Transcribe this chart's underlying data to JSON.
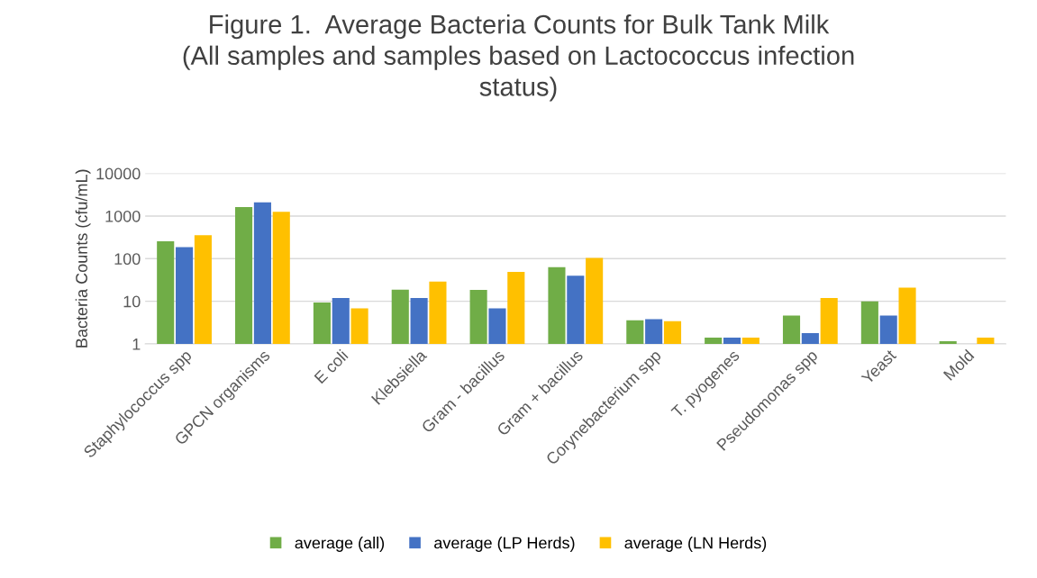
{
  "chart_data": {
    "type": "bar",
    "title": "Figure 1.  Average Bacteria Counts for Bulk Tank Milk\n(All samples and samples based on Lactococcus infection\nstatus)",
    "ylabel": "Bacteria Counts (cfu/mL)",
    "categories": [
      "Staphylococcus spp",
      "GPCN organisms",
      "E coli",
      "Klebsiella",
      "Gram - bacillus",
      "Gram + bacillus",
      "Corynebacterium spp",
      "T. pyogenes",
      "Pseudomonas spp",
      "Yeast",
      "Mold"
    ],
    "series": [
      {
        "name": "average (all)",
        "color": "#70ad47",
        "values": [
          257,
          1620,
          9.4,
          18.7,
          18.6,
          63,
          3.6,
          1.4,
          4.6,
          10,
          1.15
        ]
      },
      {
        "name": "average (LP Herds)",
        "color": "#4472c4",
        "values": [
          186,
          2090,
          12,
          12,
          6.8,
          40,
          3.8,
          1.4,
          1.8,
          4.6,
          null
        ]
      },
      {
        "name": "average (LN Herds)",
        "color": "#ffc000",
        "values": [
          355,
          1260,
          6.8,
          29,
          49,
          104,
          3.4,
          1.4,
          12,
          21,
          1.4
        ]
      }
    ],
    "log": true,
    "ylim": [
      1,
      10000
    ],
    "yticks": [
      1,
      10,
      100,
      1000,
      10000
    ],
    "grid": "y",
    "legend": "bottom"
  }
}
